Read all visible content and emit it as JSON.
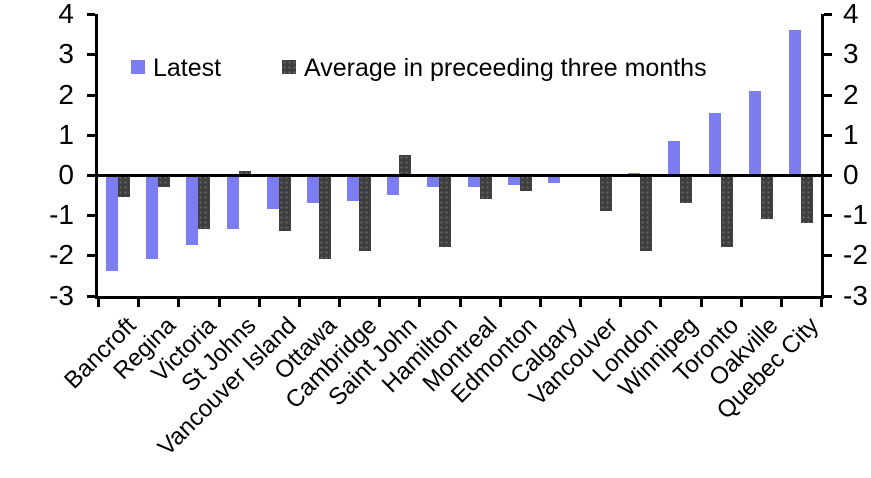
{
  "chart_data": {
    "type": "bar",
    "title": "",
    "xlabel": "",
    "ylabel": "",
    "categories": [
      "Bancroft",
      "Regina",
      "Victoria",
      "St Johns",
      "Vancouver Island",
      "Ottawa",
      "Cambridge",
      "Saint John",
      "Hamilton",
      "Montreal",
      "Edmonton",
      "Calgary",
      "Vancouver",
      "London",
      "Winnipeg",
      "Toronto",
      "Oakville",
      "Quebec City"
    ],
    "series": [
      {
        "name": "Latest",
        "color": "#7d7df2",
        "values": [
          -2.4,
          -2.1,
          -1.75,
          -1.35,
          -0.85,
          -0.7,
          -0.65,
          -0.5,
          -0.3,
          -0.3,
          -0.25,
          -0.2,
          0,
          0.05,
          0.85,
          1.55,
          2.1,
          3.6
        ]
      },
      {
        "name": "Average in preceeding three months",
        "color": "#3e3e3e",
        "values": [
          -0.55,
          -0.3,
          -1.35,
          0.1,
          -1.4,
          -2.1,
          -1.9,
          0.5,
          -1.8,
          -0.6,
          -0.4,
          0,
          -0.9,
          -1.9,
          -0.7,
          -1.8,
          -1.1,
          -1.2
        ]
      }
    ],
    "ylim": [
      -3,
      4
    ],
    "yticks": [
      -3,
      -2,
      -1,
      0,
      1,
      2,
      3,
      4
    ],
    "y_axis_sides": "both",
    "grid": false,
    "zero_line": true,
    "legend_position": "top-left-inside",
    "x_label_rotation_deg": 45
  },
  "colors": {
    "latest": "#7d7df2",
    "average": "#3e3e3e",
    "axis": "#000000",
    "background": "#ffffff"
  }
}
